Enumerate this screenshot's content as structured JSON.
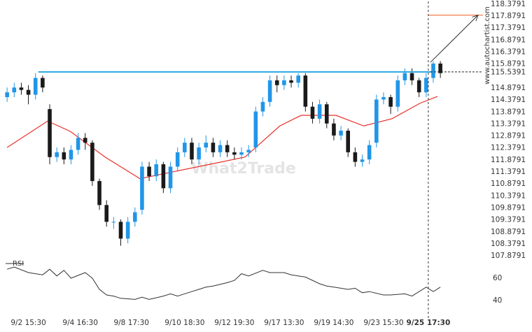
{
  "chart_data": [
    {
      "type": "candlestick",
      "watermark": "What2Trade",
      "source": "www.autochartist.com",
      "up_color": "#2196e8",
      "down_color": "#1a1a1a",
      "xlim": [
        0,
        68
      ],
      "ylim": [
        107.62,
        118.55
      ],
      "yticks": [
        118.3791,
        117.8791,
        117.3791,
        116.8791,
        116.3791,
        115.8791,
        115.5391,
        114.8791,
        114.3791,
        113.8791,
        113.3791,
        112.8791,
        112.3791,
        111.8791,
        111.3791,
        110.8791,
        110.3791,
        109.8791,
        109.3791,
        108.8791,
        108.3791,
        107.8791
      ],
      "x": [
        1,
        2,
        3,
        4,
        5,
        6,
        7,
        8,
        9,
        10,
        11,
        12,
        13,
        14,
        15,
        16,
        17,
        18,
        19,
        20,
        21,
        22,
        23,
        24,
        25,
        26,
        27,
        28,
        29,
        30,
        31,
        32,
        33,
        34,
        35,
        36,
        37,
        38,
        39,
        40,
        41,
        42,
        43,
        44,
        45,
        46,
        47,
        48,
        49,
        50,
        51,
        52,
        53,
        54,
        55,
        56,
        57,
        58,
        59,
        60,
        61,
        62
      ],
      "open": [
        114.5,
        114.7,
        114.9,
        114.8,
        114.6,
        115.3,
        114.0,
        112.0,
        112.2,
        111.9,
        112.3,
        112.8,
        112.6,
        111.0,
        110.0,
        109.3,
        109.3,
        108.6,
        109.3,
        109.8,
        111.6,
        111.2,
        111.7,
        110.7,
        111.6,
        112.2,
        112.6,
        111.9,
        112.4,
        112.6,
        112.2,
        112.5,
        112.2,
        112.1,
        112.2,
        112.4,
        113.9,
        114.3,
        115.2,
        115.0,
        115.2,
        115.1,
        115.4,
        114.1,
        113.6,
        114.2,
        113.4,
        112.9,
        113.1,
        112.2,
        111.8,
        111.9,
        112.6,
        114.4,
        114.5,
        114.1,
        115.2,
        115.5,
        115.2,
        114.7,
        115.3,
        115.9
      ],
      "high": [
        114.9,
        115.1,
        115.1,
        115.0,
        115.5,
        115.4,
        114.2,
        112.4,
        112.4,
        112.5,
        113.0,
        113.0,
        112.7,
        111.1,
        110.2,
        109.5,
        109.4,
        109.5,
        109.9,
        111.8,
        111.8,
        111.9,
        111.8,
        111.8,
        112.4,
        112.8,
        112.8,
        112.6,
        112.9,
        112.8,
        112.7,
        112.7,
        112.4,
        112.4,
        112.5,
        114.1,
        114.5,
        115.4,
        115.4,
        115.4,
        115.4,
        115.5,
        115.5,
        114.3,
        114.4,
        114.3,
        113.6,
        113.3,
        113.2,
        112.4,
        112.1,
        112.7,
        114.6,
        114.7,
        114.6,
        115.4,
        115.7,
        115.7,
        115.3,
        115.5,
        116.0,
        116.0
      ],
      "low": [
        114.3,
        114.5,
        114.6,
        114.2,
        114.4,
        114.7,
        111.7,
        111.8,
        111.7,
        111.7,
        112.1,
        112.3,
        110.8,
        109.8,
        109.1,
        109.0,
        108.3,
        108.4,
        109.1,
        109.6,
        111.0,
        111.0,
        110.5,
        110.5,
        111.4,
        112.0,
        111.7,
        111.7,
        112.2,
        112.0,
        112.0,
        112.0,
        111.9,
        111.9,
        112.0,
        112.2,
        113.7,
        114.1,
        114.7,
        114.8,
        114.9,
        114.9,
        113.9,
        113.4,
        113.4,
        113.2,
        112.7,
        112.7,
        112.0,
        111.6,
        111.6,
        111.7,
        112.4,
        114.2,
        113.8,
        113.9,
        115.0,
        115.0,
        114.5,
        114.5,
        115.1,
        115.3
      ],
      "close": [
        114.7,
        114.9,
        114.8,
        114.6,
        115.3,
        114.9,
        112.0,
        112.2,
        111.9,
        112.3,
        112.8,
        112.6,
        111.0,
        110.0,
        109.3,
        109.3,
        108.6,
        109.3,
        109.7,
        111.6,
        111.2,
        111.7,
        110.7,
        111.6,
        112.2,
        112.6,
        111.9,
        112.4,
        112.6,
        112.2,
        112.5,
        112.2,
        112.1,
        112.2,
        112.3,
        113.9,
        114.3,
        115.2,
        115.0,
        115.2,
        115.1,
        115.4,
        114.1,
        113.6,
        114.2,
        113.4,
        112.9,
        113.1,
        112.2,
        111.8,
        111.9,
        112.5,
        114.4,
        114.5,
        114.1,
        115.2,
        115.5,
        115.2,
        114.7,
        115.3,
        115.9,
        115.5
      ],
      "ma": {
        "color": "#e8302a",
        "x": [
          1,
          6.7,
          9.9,
          14.8,
          19.7,
          24.6,
          29.6,
          34.5,
          39.4,
          42.4,
          47.3,
          51.2,
          55.2,
          59.1,
          61.6
        ],
        "values": [
          112.4,
          113.5,
          113.07,
          112.0,
          111.1,
          111.4,
          111.7,
          112.0,
          113.3,
          113.74,
          113.74,
          113.3,
          113.6,
          114.24,
          114.53
        ]
      },
      "resistance": {
        "color": "#2aa7e0",
        "value": 115.55,
        "x": [
          5.4,
          61
        ],
        "extension_x": [
          60.6,
          68
        ]
      },
      "target": {
        "color": "#f07c4a",
        "value": 117.92,
        "x": [
          60.3,
          68
        ]
      },
      "arrow": {
        "x": [
          60.6,
          67.3
        ],
        "y": [
          115.95,
          117.92
        ]
      }
    },
    {
      "type": "line",
      "title": "RSI",
      "color": "#333333",
      "xlim": [
        0,
        68
      ],
      "ylim": [
        27.5,
        71.25
      ],
      "yticks": [
        60,
        40
      ],
      "xticks": [
        {
          "value": 4,
          "label": "9/2 15:30"
        },
        {
          "value": 11.3,
          "label": "9/4 16:30"
        },
        {
          "value": 18.5,
          "label": "9/8 17:30"
        },
        {
          "value": 26,
          "label": "9/10 18:30"
        },
        {
          "value": 33,
          "label": "9/12 19:30"
        },
        {
          "value": 40,
          "label": "9/17 13:30"
        },
        {
          "value": 47,
          "label": "9/19 14:30"
        },
        {
          "value": 54,
          "label": "9/23 15:30"
        },
        {
          "value": 60.3,
          "label": "9/25 17:30"
        }
      ],
      "x": [
        1,
        2,
        4,
        6,
        7,
        8,
        9,
        10,
        12,
        13,
        14,
        15,
        16,
        17,
        19,
        20,
        21,
        23,
        24,
        25,
        27,
        28,
        29,
        30,
        32,
        33,
        34,
        35,
        37,
        38,
        40,
        41,
        43,
        45,
        46,
        47,
        49,
        50,
        51,
        52,
        54,
        55,
        57,
        58,
        60,
        61,
        62
      ],
      "values": [
        68,
        70,
        65,
        63,
        68,
        62,
        67,
        60,
        65,
        60,
        50,
        45,
        44,
        42,
        41,
        43,
        41,
        44,
        46,
        44,
        48,
        50,
        52,
        53,
        56,
        58,
        64,
        62,
        67,
        65,
        65,
        63,
        61,
        55,
        53,
        52,
        50,
        51,
        47,
        48,
        45,
        45,
        46,
        44,
        52,
        48,
        52
      ]
    }
  ]
}
